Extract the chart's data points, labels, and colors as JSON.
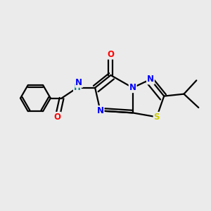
{
  "background_color": "#ebebeb",
  "bond_color": "#000000",
  "atom_colors": {
    "N": "#0000ff",
    "O": "#ff0000",
    "S": "#cccc00",
    "NH": "#008080",
    "C": "#000000"
  },
  "figsize": [
    3.0,
    3.0
  ],
  "dpi": 100
}
